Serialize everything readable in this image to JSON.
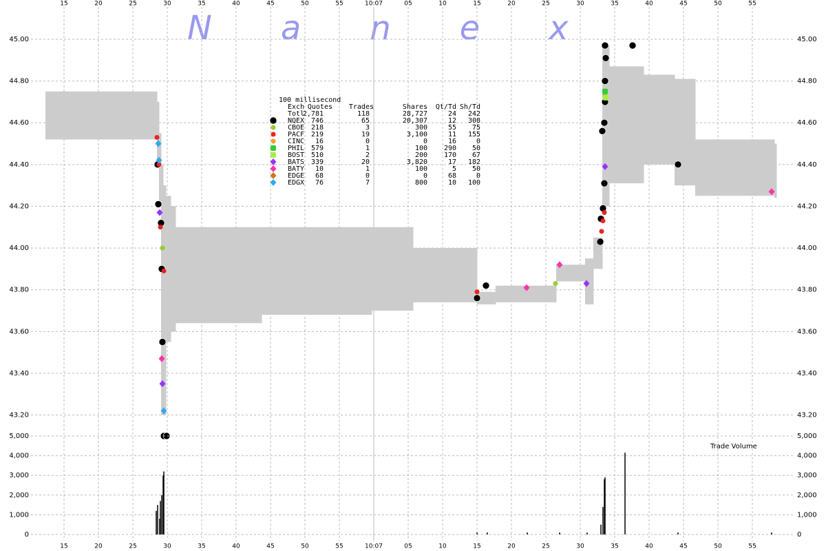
{
  "chart_data": [
    {
      "type": "scatter",
      "title": "Nanex",
      "xlim": [
        10.2,
        121
      ],
      "xticks": [
        15,
        20,
        25,
        30,
        35,
        40,
        45,
        50,
        55,
        {
          "value": 60,
          "label": "10:07"
        },
        {
          "value": 65,
          "label": "05"
        },
        {
          "value": 70,
          "label": "10"
        },
        {
          "value": 75,
          "label": "15"
        },
        {
          "value": 80,
          "label": "20"
        },
        {
          "value": 85,
          "label": "25"
        },
        {
          "value": 90,
          "label": "30"
        },
        {
          "value": 95,
          "label": "35"
        },
        {
          "value": 100,
          "label": "40"
        },
        {
          "value": 105,
          "label": "45"
        },
        {
          "value": 110,
          "label": "50"
        },
        {
          "value": 115,
          "label": "55"
        }
      ],
      "ylim": [
        43.07,
        45.155
      ],
      "yticks": [
        {
          "value": 43.2,
          "label": "43.20"
        },
        {
          "value": 43.4,
          "label": "43.40"
        },
        {
          "value": 43.6,
          "label": "43.60"
        },
        {
          "value": 43.8,
          "label": "43.80"
        },
        {
          "value": 44.0,
          "label": "44.00"
        },
        {
          "value": 44.2,
          "label": "44.20"
        },
        {
          "value": 44.4,
          "label": "44.40"
        },
        {
          "value": 44.6,
          "label": "44.60"
        },
        {
          "value": 44.8,
          "label": "44.80"
        },
        {
          "value": 45.0,
          "label": "45.00"
        }
      ],
      "grid": true,
      "band": {
        "color": "#cccccc",
        "x": [
          12.3,
          28.5,
          28.8,
          29.1,
          29.4,
          29.8,
          30.5,
          31.2,
          43.7,
          59.7,
          65.7,
          75.0,
          77.7,
          86.5,
          90.7,
          91.9,
          93.2,
          94.2,
          99.2,
          103.7,
          106.7,
          118.2
        ],
        "high": [
          44.75,
          44.7,
          44.55,
          44.4,
          44.3,
          44.25,
          44.2,
          44.1,
          44.1,
          44.1,
          44.0,
          43.79,
          43.82,
          43.92,
          43.95,
          44.05,
          44.97,
          44.87,
          44.83,
          44.81,
          44.52,
          44.5
        ],
        "low": [
          44.52,
          44.4,
          44.2,
          43.2,
          43.2,
          43.55,
          43.6,
          43.64,
          43.68,
          43.7,
          43.74,
          43.73,
          43.74,
          43.84,
          43.73,
          43.9,
          44.2,
          44.31,
          44.4,
          44.3,
          44.25,
          44.24
        ]
      },
      "stats_title": "100 millisecond",
      "stats_columns": [
        "Exch",
        "Quotes",
        "Trades",
        "Shares",
        "Qt/Td",
        "Sh/Td"
      ],
      "total_label": "Totl",
      "total": [
        "2,781",
        "118",
        "28,727",
        "24",
        "242"
      ],
      "series": [
        {
          "name": "NQEX",
          "color": "#000000",
          "marker": "large-circle",
          "stats": [
            "746",
            "65",
            "20,307",
            "12",
            "308"
          ],
          "x": [
            28.6,
            28.7,
            29.1,
            29.2,
            29.3,
            29.5,
            29.9,
            75.0,
            76.3,
            92.9,
            93.0,
            93.3,
            93.2,
            93.5,
            93.6,
            93.6,
            93.7,
            93.6,
            97.6,
            104.2,
            93.5
          ],
          "values": [
            44.4,
            44.21,
            44.12,
            43.9,
            43.55,
            43.1,
            43.1,
            43.76,
            43.82,
            44.03,
            44.14,
            44.19,
            44.56,
            44.6,
            44.7,
            44.8,
            44.91,
            44.97,
            44.97,
            44.4,
            44.31
          ]
        },
        {
          "name": "CBOE",
          "color": "#99cc33",
          "marker": "circle",
          "stats": [
            "218",
            "3",
            "300",
            "55",
            "75"
          ],
          "x": [
            29.3,
            86.4,
            93.6
          ],
          "values": [
            44.0,
            43.83,
            44.73
          ]
        },
        {
          "name": "PACF",
          "color": "#ee2222",
          "marker": "circle",
          "stats": [
            "219",
            "19",
            "3,100",
            "11",
            "155"
          ],
          "x": [
            28.5,
            28.8,
            29.0,
            29.5,
            93.1,
            93.5,
            93.3,
            75.0
          ],
          "values": [
            44.53,
            44.4,
            44.1,
            43.89,
            44.08,
            44.17,
            44.13,
            43.79
          ]
        },
        {
          "name": "CINC",
          "color": "#ff9933",
          "marker": "circle",
          "stats": [
            "16",
            "0",
            "0",
            "16",
            "0"
          ],
          "x": [],
          "values": []
        },
        {
          "name": "PHIL",
          "color": "#33cc33",
          "marker": "square",
          "stats": [
            "579",
            "1",
            "100",
            "290",
            "50"
          ],
          "x": [
            93.6
          ],
          "values": [
            44.75
          ]
        },
        {
          "name": "BOST",
          "color": "#aaee44",
          "marker": "square",
          "stats": [
            "510",
            "2",
            "200",
            "170",
            "67"
          ],
          "x": [
            93.7
          ],
          "values": [
            44.72
          ]
        },
        {
          "name": "BATS",
          "color": "#9933ff",
          "marker": "diamond",
          "stats": [
            "339",
            "20",
            "3,820",
            "17",
            "182"
          ],
          "x": [
            28.9,
            29.3,
            93.6,
            90.9
          ],
          "values": [
            44.17,
            43.35,
            44.39,
            43.83
          ]
        },
        {
          "name": "BATY",
          "color": "#ff33aa",
          "marker": "diamond",
          "stats": [
            "10",
            "1",
            "100",
            "5",
            "50"
          ],
          "x": [
            29.2,
            82.2,
            87.0,
            117.8
          ],
          "values": [
            43.47,
            43.81,
            43.92,
            44.27
          ]
        },
        {
          "name": "EDGE",
          "color": "#cc7722",
          "marker": "diamond",
          "stats": [
            "68",
            "0",
            "0",
            "68",
            "0"
          ],
          "x": [],
          "values": []
        },
        {
          "name": "EDGX",
          "color": "#33aaee",
          "marker": "diamond",
          "stats": [
            "76",
            "7",
            "800",
            "10",
            "100"
          ],
          "x": [
            28.7,
            28.8,
            29.5
          ],
          "values": [
            44.5,
            44.42,
            43.22
          ]
        }
      ]
    },
    {
      "type": "bar",
      "label": "Trade Volume",
      "color": "#000000",
      "xlim": [
        10.2,
        121
      ],
      "xticks": [
        15,
        20,
        25,
        30,
        35,
        40,
        45,
        50,
        55,
        {
          "value": 60,
          "label": "10:07"
        },
        {
          "value": 65,
          "label": "05"
        },
        {
          "value": 70,
          "label": "10"
        },
        {
          "value": 75,
          "label": "15"
        },
        {
          "value": 80,
          "label": "20"
        },
        {
          "value": 85,
          "label": "25"
        },
        {
          "value": 90,
          "label": "30"
        },
        {
          "value": 95,
          "label": "35"
        },
        {
          "value": 100,
          "label": "40"
        },
        {
          "value": 105,
          "label": "45"
        },
        {
          "value": 110,
          "label": "50"
        },
        {
          "value": 115,
          "label": "55"
        }
      ],
      "ylim": [
        0,
        5000
      ],
      "yticks": [
        0,
        {
          "value": 1000,
          "label": "1,000"
        },
        {
          "value": 2000,
          "label": "2,000"
        },
        {
          "value": 3000,
          "label": "3,000"
        },
        {
          "value": 4000,
          "label": "4,000"
        },
        {
          "value": 5000,
          "label": "5,000"
        }
      ],
      "grid": true,
      "x": [
        28.4,
        28.6,
        28.9,
        29.0,
        29.2,
        29.4,
        29.5,
        75.0,
        76.5,
        82.3,
        87.0,
        91.0,
        93.0,
        93.3,
        93.5,
        93.6,
        96.5,
        104.2,
        117.8
      ],
      "values": [
        1200,
        1500,
        800,
        1700,
        2000,
        3000,
        3200,
        100,
        100,
        100,
        100,
        100,
        500,
        1400,
        2800,
        2900,
        4150,
        100,
        100
      ]
    }
  ]
}
